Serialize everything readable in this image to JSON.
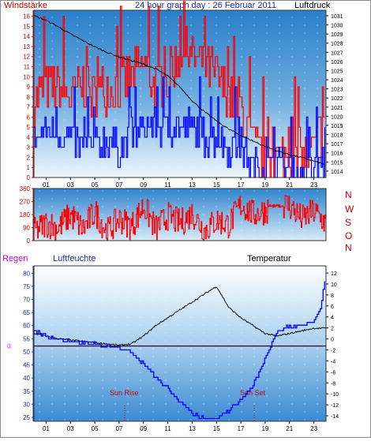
{
  "header": {
    "left": "Windstärke",
    "center": "24 hour graph day : 26 Februar 2011",
    "right": "Luftdruck"
  },
  "lower_header": {
    "regen": "Regen",
    "luftfeuchte": "Luftfeuchte",
    "temperatur": "Temperatur"
  },
  "direction_labels": [
    "N",
    "W",
    "S",
    "O",
    "N"
  ],
  "annotations": {
    "sunrise": "Sun Rise",
    "sunset": "Sun Set"
  },
  "colors": {
    "wind_gust": "#ff0000",
    "wind_avg": "#0000ff",
    "pressure": "#000000",
    "direction": "#ff0000",
    "humidity": "#000000",
    "temperature": "#0000ff",
    "rain": "#ff00ff",
    "bg_top": "#1e78c8",
    "bg_bottom": "#ffffff"
  },
  "chart_data": [
    {
      "type": "line",
      "title": "24 hour graph day : 26 Februar 2011",
      "ylabel": "Windstärke",
      "y2label": "Luftdruck",
      "x_ticks": [
        "01",
        "03",
        "05",
        "07",
        "09",
        "11",
        "13",
        "15",
        "17",
        "19",
        "21",
        "23"
      ],
      "xlim": [
        0,
        24
      ],
      "ylim": [
        0,
        16.6
      ],
      "y2lim": [
        1013.3,
        1031.6
      ],
      "y_ticks": [
        0,
        1,
        2,
        3,
        4,
        5,
        6,
        7,
        8,
        9,
        10,
        11,
        12,
        13,
        14,
        15,
        16
      ],
      "y2_ticks": [
        1014,
        1015,
        1016,
        1017,
        1018,
        1019,
        1020,
        1021,
        1022,
        1023,
        1024,
        1025,
        1026,
        1027,
        1028,
        1029,
        1030,
        1031
      ],
      "series": [
        {
          "name": "",
          "axis": "right",
          "x": [
            0,
            1,
            2,
            3,
            4,
            5,
            6,
            7,
            8,
            9,
            10,
            11,
            12,
            13,
            14,
            15,
            16,
            17,
            18,
            19,
            20,
            21,
            22,
            23,
            24
          ],
          "values": [
            1031.0,
            1030.5,
            1029.8,
            1029.0,
            1028.3,
            1027.6,
            1027.0,
            1026.5,
            1026.1,
            1025.7,
            1025.2,
            1024.4,
            1023.2,
            1021.7,
            1020.5,
            1019.5,
            1018.6,
            1017.9,
            1017.3,
            1016.7,
            1016.2,
            1015.8,
            1015.5,
            1015.1,
            1014.7
          ]
        },
        {
          "name": "",
          "axis": "left",
          "x": [
            0,
            1,
            2,
            3,
            4,
            5,
            6,
            7,
            8,
            9,
            10,
            11,
            12,
            13,
            14,
            15,
            16,
            17,
            18,
            19,
            20,
            21,
            22,
            23,
            24
          ],
          "values": [
            8,
            9,
            9,
            8,
            9,
            8,
            9,
            9,
            10,
            11,
            9,
            10,
            12,
            12,
            11,
            10,
            8,
            7,
            3,
            2,
            2,
            2,
            2,
            3,
            6
          ]
        },
        {
          "name": "",
          "axis": "left",
          "x": [
            0,
            1,
            2,
            3,
            4,
            5,
            6,
            7,
            8,
            9,
            10,
            11,
            12,
            13,
            14,
            15,
            16,
            17,
            18,
            19,
            20,
            21,
            22,
            23,
            24
          ],
          "values": [
            4,
            5,
            4,
            4,
            3,
            3,
            4,
            3,
            4,
            5,
            5,
            5,
            5,
            5,
            4,
            4,
            3,
            3,
            1,
            1,
            1,
            1,
            0,
            1,
            2
          ]
        }
      ]
    },
    {
      "type": "line",
      "ylabel": "",
      "xlim": [
        0,
        24
      ],
      "ylim": [
        0,
        360
      ],
      "y_ticks": [
        0,
        90,
        180,
        270,
        360
      ],
      "series": [
        {
          "name": "",
          "x": [
            0,
            1,
            2,
            3,
            4,
            5,
            6,
            7,
            8,
            9,
            10,
            11,
            12,
            13,
            14,
            15,
            16,
            17,
            18,
            19,
            20,
            21,
            22,
            23,
            24
          ],
          "values": [
            60,
            120,
            90,
            180,
            80,
            200,
            60,
            150,
            100,
            240,
            80,
            170,
            120,
            190,
            70,
            140,
            110,
            250,
            180,
            210,
            260,
            240,
            150,
            200,
            120
          ]
        }
      ]
    },
    {
      "type": "line",
      "xlim": [
        0,
        24
      ],
      "x_ticks": [
        "01",
        "03",
        "05",
        "07",
        "09",
        "11",
        "13",
        "15",
        "17",
        "19",
        "21",
        "23"
      ],
      "y_ticks_left": [
        25,
        30,
        35,
        40,
        45,
        50,
        55,
        60,
        65,
        70,
        75,
        80
      ],
      "ylim_left": [
        23.5,
        82.8
      ],
      "y_ticks_right": [
        -14,
        -12,
        -10,
        -8,
        -6,
        -4,
        -2,
        0,
        2,
        4,
        6,
        8,
        10,
        12
      ],
      "ylim_right": [
        -15,
        13.3
      ],
      "rain_baseline_label": "0",
      "series": [
        {
          "name": "",
          "axis": "left",
          "x": [
            0,
            1,
            2,
            3,
            4,
            5,
            6,
            7,
            8,
            9,
            10,
            11,
            12,
            13,
            14,
            15,
            15.5,
            16,
            17,
            18,
            19,
            20,
            21,
            22,
            23,
            24
          ],
          "values": [
            57,
            56,
            55,
            54.5,
            54,
            53.5,
            53,
            52.5,
            53,
            56,
            60,
            63,
            66,
            69,
            72,
            75,
            71,
            67,
            63,
            60,
            57,
            56,
            57,
            58,
            59,
            59
          ]
        },
        {
          "name": "",
          "axis": "right",
          "x": [
            0,
            1,
            2,
            3,
            4,
            5,
            6,
            7,
            8,
            9,
            10,
            11,
            12,
            13,
            14,
            15,
            16,
            17,
            18,
            19,
            20,
            21,
            22,
            23,
            23.6,
            24
          ],
          "values": [
            1.5,
            0.5,
            0,
            -0.5,
            -0.7,
            -1,
            -1.2,
            -1.5,
            -2.5,
            -4.5,
            -7,
            -9,
            -11.5,
            -13.5,
            -14.5,
            -14.5,
            -13,
            -11,
            -8.5,
            -3.5,
            1.5,
            2.2,
            2.6,
            3,
            6,
            12.5
          ]
        },
        {
          "name": "",
          "axis": "right",
          "x": [
            0,
            24
          ],
          "values": [
            -1.3,
            -1.3
          ]
        }
      ]
    }
  ]
}
